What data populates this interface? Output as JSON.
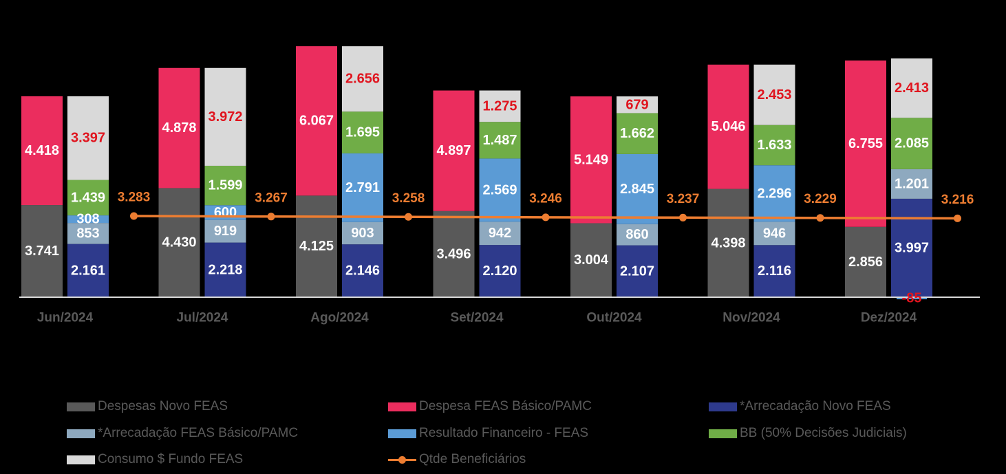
{
  "chart_data": {
    "type": "bar",
    "subtype": "grouped-stacked-with-line",
    "categories": [
      "Jun/2024",
      "Jul/2024",
      "Ago/2024",
      "Set/2024",
      "Out/2024",
      "Nov/2024",
      "Dez/2024"
    ],
    "series": [
      {
        "key": "despesas_novo",
        "name": "Despesas Novo FEAS",
        "stack": "despesas",
        "color": "#595959",
        "label_color": "#FFFFFF",
        "values": [
          3741,
          4430,
          4125,
          3496,
          3004,
          4398,
          2856
        ],
        "labels": [
          "3.741",
          "4.430",
          "4.125",
          "3.496",
          "3.004",
          "4.398",
          "2.856"
        ]
      },
      {
        "key": "despesa_basico",
        "name": "Despesa FEAS Básico/PAMC",
        "stack": "despesas",
        "color": "#EB2D5E",
        "label_color": "#FFFFFF",
        "values": [
          4418,
          4878,
          6067,
          4897,
          5149,
          5046,
          6755
        ],
        "labels": [
          "4.418",
          "4.878",
          "6.067",
          "4.897",
          "5.149",
          "5.046",
          "6.755"
        ]
      },
      {
        "key": "arrecadacao_novo",
        "name": "*Arrecadação Novo FEAS",
        "stack": "receitas",
        "color": "#2E3A8C",
        "label_color": "#FFFFFF",
        "values": [
          2161,
          2218,
          2146,
          2120,
          2107,
          2116,
          3997
        ],
        "labels": [
          "2.161",
          "2.218",
          "2.146",
          "2.120",
          "2.107",
          "2.116",
          "3.997"
        ]
      },
      {
        "key": "arrecadacao_basico",
        "name": "*Arrecadação FEAS Básico/PAMC",
        "stack": "receitas",
        "color": "#8EA9BF",
        "label_color": "#FFFFFF",
        "values": [
          853,
          919,
          903,
          942,
          860,
          946,
          1201
        ],
        "labels": [
          "853",
          "919",
          "903",
          "942",
          "860",
          "946",
          "1.201"
        ]
      },
      {
        "key": "resultado_financeiro",
        "name": "Resultado Financeiro - FEAS",
        "stack": "receitas",
        "color": "#5B9BD5",
        "label_color": "#FFFFFF",
        "values": [
          308,
          600,
          2791,
          2569,
          2845,
          2296,
          -85
        ],
        "labels": [
          "308",
          "600",
          "2.791",
          "2.569",
          "2.845",
          "2.296",
          "-85"
        ]
      },
      {
        "key": "bb",
        "name": "BB (50% Decisões Judiciais)",
        "stack": "receitas",
        "color": "#70AD47",
        "label_color": "#FFFFFF",
        "values": [
          1439,
          1599,
          1695,
          1487,
          1662,
          1633,
          2085
        ],
        "labels": [
          "1.439",
          "1.599",
          "1.695",
          "1.487",
          "1.662",
          "1.633",
          "2.085"
        ]
      },
      {
        "key": "consumo_fundo",
        "name": "Consumo $ Fundo FEAS",
        "stack": "receitas",
        "color": "#D9D9D9",
        "label_color": "#E0141E",
        "values": [
          3397,
          3972,
          2656,
          1275,
          679,
          2453,
          2413
        ],
        "labels": [
          "3.397",
          "3.972",
          "2.656",
          "1.275",
          "679",
          "2.453",
          "2.413"
        ]
      }
    ],
    "line": {
      "name": "Qtde Beneficiários",
      "color": "#ED7D31",
      "values": [
        3283,
        3267,
        3258,
        3246,
        3237,
        3229,
        3216
      ],
      "labels": [
        "3.283",
        "3.267",
        "3.258",
        "3.246",
        "3.237",
        "3.229",
        "3.216"
      ]
    },
    "negative_label_color": "#E0141E",
    "ylim": [
      0,
      11000
    ],
    "title": "",
    "xlabel": "",
    "ylabel": "",
    "grid": false,
    "legend_position": "bottom"
  },
  "legend": [
    {
      "label": "Despesas Novo FEAS",
      "color": "#595959",
      "type": "box"
    },
    {
      "label": "Despesa FEAS Básico/PAMC",
      "color": "#EB2D5E",
      "type": "box"
    },
    {
      "label": "*Arrecadação Novo FEAS",
      "color": "#2E3A8C",
      "type": "box"
    },
    {
      "label": "*Arrecadação FEAS Básico/PAMC",
      "color": "#8EA9BF",
      "type": "box"
    },
    {
      "label": "Resultado Financeiro - FEAS",
      "color": "#5B9BD5",
      "type": "box"
    },
    {
      "label": "BB (50% Decisões Judiciais)",
      "color": "#70AD47",
      "type": "box"
    },
    {
      "label": "Consumo $ Fundo FEAS",
      "color": "#D9D9D9",
      "type": "box"
    },
    {
      "label": "Qtde Beneficiários",
      "color": "#ED7D31",
      "type": "line"
    }
  ]
}
